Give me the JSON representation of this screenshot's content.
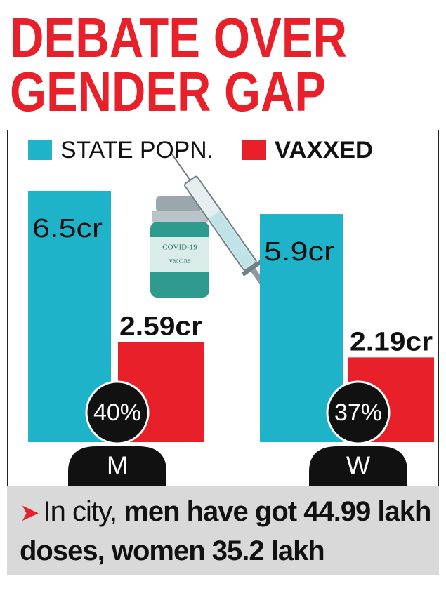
{
  "chart_data": {
    "type": "bar",
    "title": [
      "DEBATE OVER",
      "GENDER GAP"
    ],
    "categories": [
      "M",
      "W"
    ],
    "series": [
      {
        "name": "STATE POPN.",
        "color": "#1fb3c9",
        "values": [
          6.5,
          5.9
        ],
        "value_labels": [
          "6.5cr",
          "5.9cr"
        ]
      },
      {
        "name": "VAXXED",
        "color": "#e8202a",
        "values": [
          2.59,
          2.19
        ],
        "value_labels": [
          "2.59cr",
          "2.19cr"
        ]
      }
    ],
    "annotations": [
      "40%",
      "37%"
    ]
  },
  "illustration": {
    "vial_title": "COVID-19",
    "vial_text": "vaccine"
  },
  "footer": {
    "text": "In city,",
    "emphasis": "men have got 44.99 lakh doses, women 35.2 lakh"
  }
}
